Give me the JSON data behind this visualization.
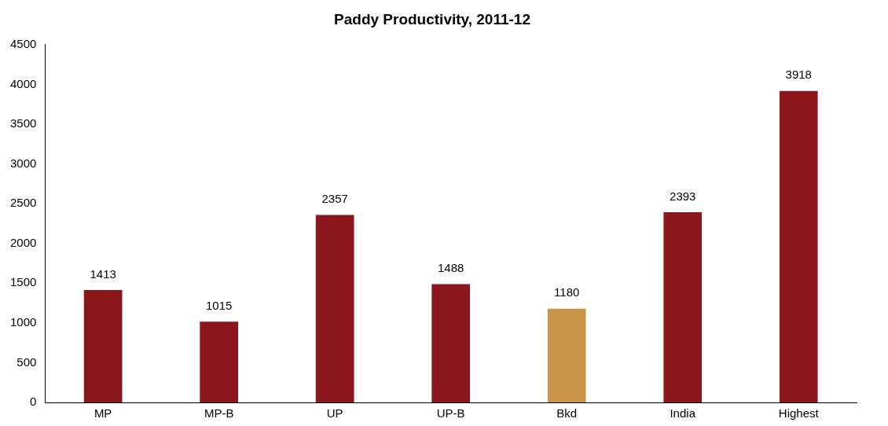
{
  "chart_data": {
    "type": "bar",
    "title": "Paddy Productivity, 2011-12",
    "categories": [
      "MP",
      "MP-B",
      "UP",
      "UP-B",
      "Bkd",
      "India",
      "Highest"
    ],
    "values": [
      1413,
      1015,
      2357,
      1488,
      1180,
      2393,
      3918
    ],
    "colors": [
      "#8b161c",
      "#8b161c",
      "#8b161c",
      "#8b161c",
      "#c9954a",
      "#8b161c",
      "#8b161c"
    ],
    "ylim": [
      0,
      4500
    ],
    "yticks": [
      0,
      500,
      1000,
      1500,
      2000,
      2500,
      3000,
      3500,
      4000,
      4500
    ],
    "data_labels": true,
    "grid": false,
    "legend": false
  }
}
